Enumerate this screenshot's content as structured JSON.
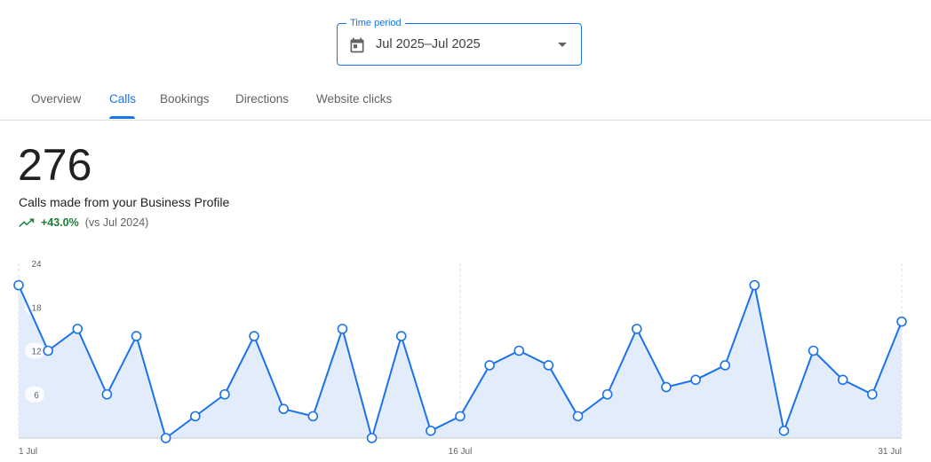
{
  "time_period": {
    "label": "Time period",
    "value": "Jul 2025–Jul 2025"
  },
  "tabs": [
    {
      "label": "Overview",
      "active": false
    },
    {
      "label": "Calls",
      "active": true
    },
    {
      "label": "Bookings",
      "active": false
    },
    {
      "label": "Directions",
      "active": false
    },
    {
      "label": "Website clicks",
      "active": false
    }
  ],
  "metric": {
    "value": "276",
    "description": "Calls made from your Business Profile",
    "change": "+43.0%",
    "comparison": "(vs Jul 2024)"
  },
  "colors": {
    "accent": "#1a73e8",
    "positive": "#188038",
    "area_fill": "#e3ecfb"
  },
  "chart_data": {
    "type": "area",
    "x": [
      "1 Jul",
      "2 Jul",
      "3 Jul",
      "4 Jul",
      "5 Jul",
      "6 Jul",
      "7 Jul",
      "8 Jul",
      "9 Jul",
      "10 Jul",
      "11 Jul",
      "12 Jul",
      "13 Jul",
      "14 Jul",
      "15 Jul",
      "16 Jul",
      "17 Jul",
      "18 Jul",
      "19 Jul",
      "20 Jul",
      "21 Jul",
      "22 Jul",
      "23 Jul",
      "24 Jul",
      "25 Jul",
      "26 Jul",
      "27 Jul",
      "28 Jul",
      "29 Jul",
      "30 Jul",
      "31 Jul"
    ],
    "values": [
      21,
      12,
      15,
      6,
      14,
      0,
      3,
      6,
      14,
      4,
      3,
      15,
      0,
      14,
      1,
      3,
      10,
      12,
      10,
      3,
      6,
      15,
      7,
      8,
      10,
      21,
      1,
      12,
      8,
      6,
      16
    ],
    "ylim": [
      0,
      24
    ],
    "y_ticks": [
      "24",
      "18",
      "12",
      "6"
    ],
    "x_tick_labels": [
      "1 Jul",
      "16 Jul",
      "31 Jul"
    ],
    "grid": "vertical dashed at labeled dates"
  }
}
